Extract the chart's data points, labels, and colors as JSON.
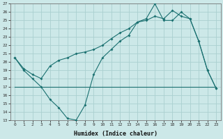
{
  "xlabel": "Humidex (Indice chaleur)",
  "x": [
    0,
    1,
    2,
    3,
    4,
    5,
    6,
    7,
    8,
    9,
    10,
    11,
    12,
    13,
    14,
    15,
    16,
    17,
    18,
    19,
    20,
    21,
    22,
    23
  ],
  "line1": [
    20.5,
    19.0,
    18.0,
    17.0,
    15.5,
    14.5,
    13.2,
    13.0,
    14.8,
    18.5,
    20.5,
    21.5,
    22.5,
    23.2,
    24.8,
    25.2,
    27.0,
    25.0,
    25.0,
    26.0,
    25.2,
    22.5,
    19.0,
    16.8
  ],
  "line2": [
    17.0,
    17.0,
    17.0,
    17.0,
    17.0,
    17.0,
    17.0,
    17.0,
    17.0,
    17.0,
    17.0,
    17.0,
    17.0,
    17.0,
    17.0,
    17.0,
    17.0,
    17.0,
    17.0,
    17.0,
    17.0,
    17.0,
    17.0,
    17.0
  ],
  "line3": [
    20.5,
    19.2,
    18.5,
    18.0,
    19.5,
    20.2,
    20.5,
    21.0,
    21.2,
    21.5,
    22.0,
    22.8,
    23.5,
    24.0,
    24.8,
    25.0,
    25.5,
    25.2,
    26.2,
    25.5,
    25.2,
    22.5,
    19.0,
    16.8
  ],
  "bg_color": "#cce8e8",
  "grid_color": "#aad0d0",
  "line_color": "#1a7070",
  "ylim": [
    13,
    27
  ],
  "yticks": [
    13,
    14,
    15,
    16,
    17,
    18,
    19,
    20,
    21,
    22,
    23,
    24,
    25,
    26,
    27
  ]
}
